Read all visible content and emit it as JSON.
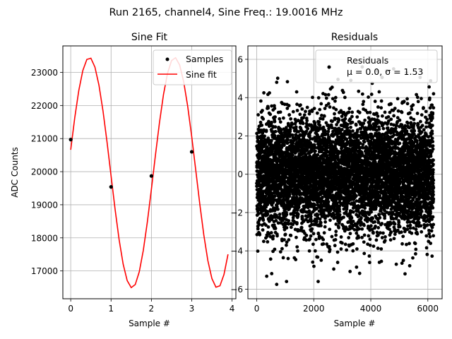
{
  "suptitle": "Run 2165, channel4, Sine Freq.: 19.0016 MHz",
  "chart_data": [
    {
      "type": "line",
      "title": "Sine Fit",
      "xlabel": "Sample #",
      "ylabel": "ADC Counts",
      "xlim": [
        -0.195,
        4.095
      ],
      "ylim": [
        16160,
        23800
      ],
      "xticks": [
        0,
        1,
        2,
        3,
        4
      ],
      "yticks": [
        17000,
        18000,
        19000,
        20000,
        21000,
        22000,
        23000
      ],
      "grid": true,
      "legend_position": "top-right",
      "series": [
        {
          "name": "Samples",
          "kind": "scatter",
          "color": "#000000",
          "x": [
            0,
            1,
            2,
            3
          ],
          "y": [
            20970,
            19540,
            19870,
            20600
          ]
        },
        {
          "name": "Sine fit",
          "kind": "line",
          "color": "#ff0000",
          "sine": {
            "offset": 19970,
            "amplitude": 3480,
            "period": 2.1164,
            "phase": 0.2,
            "x_start": 0,
            "x_end": 3.9,
            "step": 0.1
          }
        }
      ]
    },
    {
      "type": "scatter",
      "title": "Residuals",
      "xlabel": "Sample #",
      "ylabel": "",
      "xlim": [
        -310,
        6500
      ],
      "ylim": [
        -6.5,
        6.7
      ],
      "xticks": [
        0,
        2000,
        4000,
        6000
      ],
      "yticks": [
        -6,
        -4,
        -2,
        0,
        2,
        4,
        6
      ],
      "grid": true,
      "legend_position": "top-right",
      "series": [
        {
          "name": "Residuals",
          "legend_lines": [
            "Residuals",
            "μ = 0.0, σ = 1.53"
          ],
          "color": "#000000",
          "distribution": {
            "mean": 0.0,
            "std": 1.53,
            "count": 6200,
            "x_start": 0,
            "x_end": 6199
          },
          "outliers": [
            {
              "x": 700,
              "y": -5.75
            },
            {
              "x": 5200,
              "y": -5.2
            },
            {
              "x": 2700,
              "y": -4.95
            },
            {
              "x": 3500,
              "y": -4.85
            },
            {
              "x": 4300,
              "y": -4.6
            },
            {
              "x": 1100,
              "y": -4.4
            },
            {
              "x": 3700,
              "y": 5.6
            },
            {
              "x": 4800,
              "y": 5.5
            },
            {
              "x": 5250,
              "y": 5.3
            },
            {
              "x": 2850,
              "y": 4.95
            },
            {
              "x": 3300,
              "y": 4.9
            },
            {
              "x": 700,
              "y": 4.8
            },
            {
              "x": 1400,
              "y": 4.3
            },
            {
              "x": 250,
              "y": 4.25
            },
            {
              "x": 6200,
              "y": 4.2
            },
            {
              "x": 4050,
              "y": 4.75
            }
          ]
        }
      ]
    }
  ]
}
